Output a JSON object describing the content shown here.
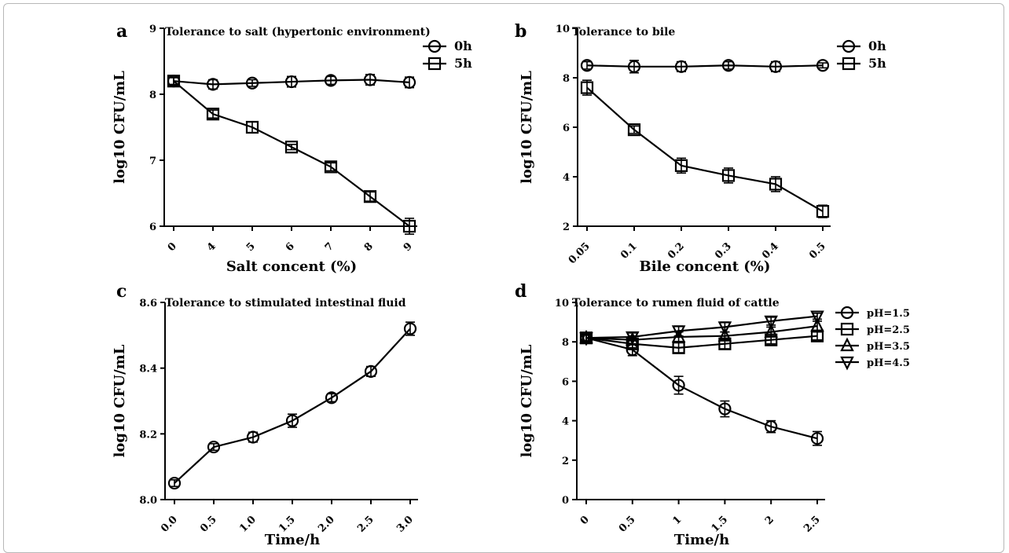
{
  "chart_data": [
    {
      "id": "a",
      "type": "line",
      "panel_label": "a",
      "title": "Tolerance to salt (hypertonic environment)",
      "xlabel": "Salt concent (%)",
      "ylabel": "log10 CFU/mL",
      "categories": [
        "0",
        "4",
        "5",
        "6",
        "7",
        "8",
        "9"
      ],
      "ylim": [
        6,
        9
      ],
      "yticks": [
        "6",
        "7",
        "8",
        "9"
      ],
      "series": [
        {
          "name": "0h",
          "marker": "circle",
          "values": [
            8.2,
            8.15,
            8.17,
            8.19,
            8.21,
            8.22,
            8.18
          ],
          "err": [
            0.06,
            0.07,
            0.05,
            0.08,
            0.06,
            0.08,
            0.08
          ]
        },
        {
          "name": "5h",
          "marker": "square",
          "values": [
            8.2,
            7.7,
            7.5,
            7.2,
            6.9,
            6.45,
            6.0
          ],
          "err": [
            0.05,
            0.06,
            0.08,
            0.04,
            0.06,
            0.07,
            0.12
          ]
        }
      ],
      "legend": "top-right"
    },
    {
      "id": "b",
      "type": "line",
      "panel_label": "b",
      "title": "Tolerance to bile",
      "xlabel": "Bile concent (%)",
      "ylabel": "log10 CFU/mL",
      "categories": [
        "0.05",
        "0.1",
        "0.2",
        "0.3",
        "0.4",
        "0.5"
      ],
      "ylim": [
        2,
        10
      ],
      "yticks": [
        "2",
        "4",
        "6",
        "8",
        "10"
      ],
      "series": [
        {
          "name": "0h",
          "marker": "circle",
          "values": [
            8.5,
            8.45,
            8.45,
            8.5,
            8.45,
            8.5
          ],
          "err": [
            0.15,
            0.25,
            0.2,
            0.15,
            0.2,
            0.1
          ]
        },
        {
          "name": "5h",
          "marker": "square",
          "values": [
            7.6,
            5.9,
            4.45,
            4.05,
            3.7,
            2.6
          ],
          "err": [
            0.3,
            0.15,
            0.3,
            0.3,
            0.3,
            0.25
          ]
        }
      ],
      "legend": "top-right"
    },
    {
      "id": "c",
      "type": "line",
      "panel_label": "c",
      "title": "Tolerance to stimulated intestinal fluid",
      "xlabel": "Time/h",
      "ylabel": "log10 CFU/mL",
      "categories": [
        "0.0",
        "0.5",
        "1.0",
        "1.5",
        "2.0",
        "2.5",
        "3.0"
      ],
      "ylim": [
        8.0,
        8.6
      ],
      "yticks": [
        "8.0",
        "8.2",
        "8.4",
        "8.6"
      ],
      "series": [
        {
          "marker": "circle",
          "values": [
            8.05,
            8.16,
            8.19,
            8.24,
            8.31,
            8.39,
            8.52
          ],
          "err": [
            0.01,
            0.01,
            0.015,
            0.02,
            0.012,
            0.015,
            0.02
          ]
        }
      ]
    },
    {
      "id": "d",
      "type": "line",
      "panel_label": "d",
      "title": "Tolerance to rumen fluid of cattle",
      "xlabel": "Time/h",
      "ylabel": "log10 CFU/mL",
      "categories": [
        "0",
        "0.5",
        "1",
        "1.5",
        "2",
        "2.5"
      ],
      "ylim": [
        0,
        10
      ],
      "yticks": [
        "0",
        "2",
        "4",
        "6",
        "8",
        "10"
      ],
      "series": [
        {
          "name": "pH=1.5",
          "marker": "circle",
          "values": [
            8.2,
            7.6,
            5.8,
            4.6,
            3.7,
            3.1
          ],
          "err": [
            0.2,
            0.3,
            0.45,
            0.4,
            0.3,
            0.35
          ]
        },
        {
          "name": "pH=2.5",
          "marker": "square",
          "values": [
            8.2,
            7.9,
            7.7,
            7.9,
            8.1,
            8.3
          ],
          "err": [
            0.15,
            0.2,
            0.25,
            0.25,
            0.2,
            0.2
          ]
        },
        {
          "name": "pH=3.5",
          "marker": "triangle-up",
          "values": [
            8.2,
            8.1,
            8.25,
            8.3,
            8.5,
            8.8
          ],
          "err": [
            0.15,
            0.2,
            0.25,
            0.2,
            0.25,
            0.25
          ]
        },
        {
          "name": "pH=4.5",
          "marker": "triangle-down",
          "values": [
            8.2,
            8.25,
            8.55,
            8.75,
            9.05,
            9.3
          ],
          "err": [
            0.15,
            0.2,
            0.25,
            0.25,
            0.2,
            0.15
          ]
        }
      ],
      "legend": "top-right"
    }
  ]
}
